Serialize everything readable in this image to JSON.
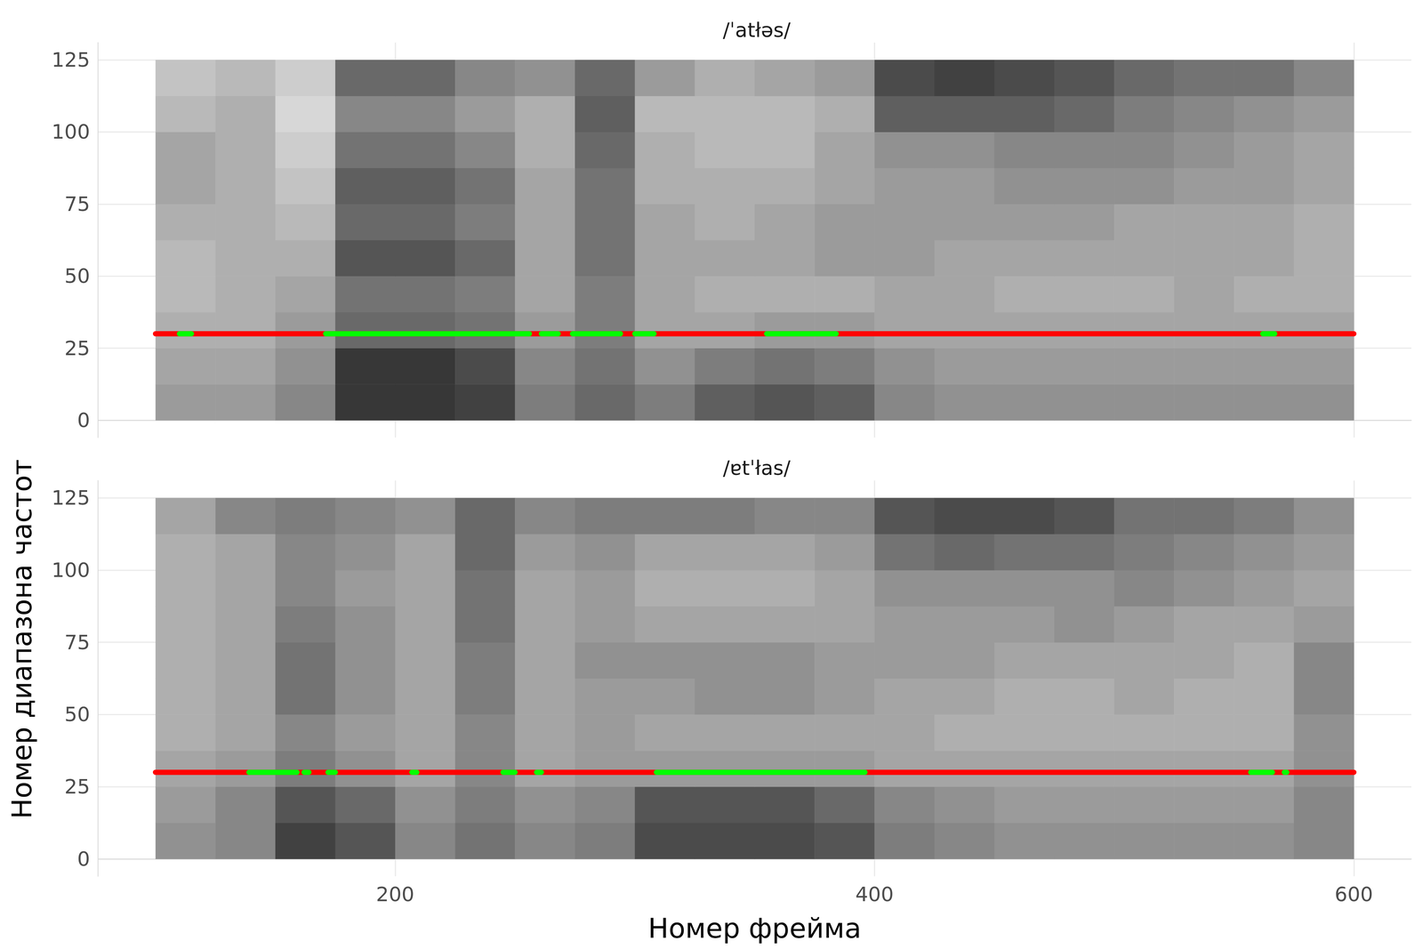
{
  "chart_data": [
    {
      "type": "heatmap",
      "title": "/ˈatłəs/",
      "y_label": "Номер диапазона частот",
      "xlim": [
        76,
        624
      ],
      "xticks": [
        200,
        400,
        600
      ],
      "ylim": [
        -6,
        131
      ],
      "yticks": [
        0,
        25,
        50,
        75,
        100,
        125
      ],
      "grid": true,
      "tick_labels": "y",
      "x_edges": [
        100,
        125,
        150,
        175,
        200,
        225,
        250,
        275,
        300,
        325,
        350,
        375,
        400,
        425,
        450,
        475,
        500,
        525,
        550,
        575,
        600
      ],
      "y_edges": [
        0,
        12.5,
        25,
        37.5,
        50,
        62.5,
        75,
        87.5,
        100,
        112.5,
        125
      ],
      "cells": [
        [
          0.4,
          0.4,
          0.5,
          0.9,
          0.9,
          0.85,
          0.55,
          0.65,
          0.55,
          0.7,
          0.75,
          0.7,
          0.5,
          0.45,
          0.45,
          0.45,
          0.45,
          0.45,
          0.45,
          0.45
        ],
        [
          0.35,
          0.35,
          0.45,
          0.9,
          0.9,
          0.8,
          0.5,
          0.6,
          0.45,
          0.55,
          0.6,
          0.55,
          0.45,
          0.4,
          0.4,
          0.4,
          0.4,
          0.4,
          0.4,
          0.4
        ],
        [
          0.3,
          0.3,
          0.4,
          0.65,
          0.65,
          0.6,
          0.4,
          0.55,
          0.35,
          0.35,
          0.4,
          0.4,
          0.35,
          0.35,
          0.35,
          0.35,
          0.35,
          0.35,
          0.35,
          0.35
        ],
        [
          0.25,
          0.3,
          0.35,
          0.6,
          0.6,
          0.55,
          0.35,
          0.55,
          0.35,
          0.3,
          0.3,
          0.3,
          0.35,
          0.35,
          0.3,
          0.3,
          0.3,
          0.35,
          0.3,
          0.3
        ],
        [
          0.25,
          0.3,
          0.3,
          0.75,
          0.75,
          0.65,
          0.35,
          0.6,
          0.35,
          0.35,
          0.35,
          0.4,
          0.4,
          0.35,
          0.35,
          0.35,
          0.35,
          0.35,
          0.35,
          0.3
        ],
        [
          0.3,
          0.3,
          0.25,
          0.65,
          0.65,
          0.55,
          0.35,
          0.6,
          0.35,
          0.3,
          0.35,
          0.4,
          0.4,
          0.4,
          0.4,
          0.4,
          0.35,
          0.35,
          0.35,
          0.3
        ],
        [
          0.35,
          0.3,
          0.2,
          0.7,
          0.7,
          0.6,
          0.35,
          0.6,
          0.3,
          0.3,
          0.3,
          0.35,
          0.4,
          0.4,
          0.45,
          0.45,
          0.45,
          0.4,
          0.4,
          0.35
        ],
        [
          0.35,
          0.3,
          0.15,
          0.6,
          0.6,
          0.5,
          0.3,
          0.65,
          0.3,
          0.25,
          0.25,
          0.35,
          0.45,
          0.45,
          0.5,
          0.5,
          0.5,
          0.45,
          0.4,
          0.35
        ],
        [
          0.25,
          0.3,
          0.1,
          0.5,
          0.5,
          0.4,
          0.3,
          0.7,
          0.25,
          0.25,
          0.25,
          0.3,
          0.7,
          0.7,
          0.7,
          0.65,
          0.55,
          0.5,
          0.45,
          0.4
        ],
        [
          0.2,
          0.25,
          0.15,
          0.65,
          0.65,
          0.5,
          0.45,
          0.65,
          0.4,
          0.3,
          0.35,
          0.4,
          0.8,
          0.85,
          0.8,
          0.75,
          0.65,
          0.6,
          0.6,
          0.5
        ]
      ],
      "line": {
        "y": 30,
        "x_range": [
          100,
          600
        ],
        "color": "#ff0000"
      },
      "highlights": {
        "color": "#00ff00",
        "ranges": [
          [
            110,
            115
          ],
          [
            171,
            256
          ],
          [
            261,
            268
          ],
          [
            274,
            294
          ],
          [
            300,
            308
          ],
          [
            355,
            384
          ],
          [
            562,
            567
          ]
        ]
      }
    },
    {
      "type": "heatmap",
      "title": "/ɐtˈłas/",
      "x_label": "Номер фрейма",
      "xlim": [
        76,
        624
      ],
      "xticks": [
        200,
        400,
        600
      ],
      "ylim": [
        -6,
        131
      ],
      "yticks": [
        0,
        25,
        50,
        75,
        100,
        125
      ],
      "grid": true,
      "x_edges": [
        100,
        125,
        150,
        175,
        200,
        225,
        250,
        275,
        300,
        325,
        350,
        375,
        400,
        425,
        450,
        475,
        500,
        525,
        550,
        575,
        600
      ],
      "y_edges": [
        0,
        12.5,
        25,
        37.5,
        50,
        62.5,
        75,
        87.5,
        100,
        112.5,
        125
      ],
      "cells": [
        [
          0.45,
          0.5,
          0.85,
          0.75,
          0.5,
          0.6,
          0.5,
          0.55,
          0.8,
          0.8,
          0.8,
          0.75,
          0.55,
          0.5,
          0.45,
          0.45,
          0.45,
          0.45,
          0.45,
          0.5
        ],
        [
          0.4,
          0.5,
          0.75,
          0.65,
          0.45,
          0.55,
          0.45,
          0.5,
          0.75,
          0.75,
          0.75,
          0.65,
          0.5,
          0.45,
          0.4,
          0.4,
          0.4,
          0.4,
          0.4,
          0.5
        ],
        [
          0.35,
          0.4,
          0.55,
          0.45,
          0.35,
          0.5,
          0.35,
          0.4,
          0.4,
          0.4,
          0.4,
          0.4,
          0.35,
          0.35,
          0.35,
          0.35,
          0.35,
          0.35,
          0.35,
          0.45
        ],
        [
          0.3,
          0.35,
          0.5,
          0.4,
          0.35,
          0.5,
          0.35,
          0.4,
          0.35,
          0.35,
          0.35,
          0.35,
          0.35,
          0.3,
          0.3,
          0.3,
          0.3,
          0.3,
          0.3,
          0.45
        ],
        [
          0.3,
          0.35,
          0.6,
          0.45,
          0.35,
          0.55,
          0.35,
          0.4,
          0.4,
          0.45,
          0.45,
          0.4,
          0.35,
          0.35,
          0.3,
          0.3,
          0.35,
          0.3,
          0.3,
          0.5
        ],
        [
          0.3,
          0.35,
          0.6,
          0.45,
          0.35,
          0.55,
          0.35,
          0.45,
          0.45,
          0.45,
          0.45,
          0.4,
          0.4,
          0.4,
          0.35,
          0.35,
          0.35,
          0.35,
          0.3,
          0.5
        ],
        [
          0.3,
          0.35,
          0.55,
          0.45,
          0.35,
          0.6,
          0.35,
          0.4,
          0.35,
          0.35,
          0.35,
          0.35,
          0.4,
          0.4,
          0.4,
          0.45,
          0.4,
          0.35,
          0.35,
          0.4
        ],
        [
          0.3,
          0.35,
          0.5,
          0.4,
          0.35,
          0.6,
          0.35,
          0.4,
          0.3,
          0.3,
          0.3,
          0.35,
          0.45,
          0.45,
          0.45,
          0.45,
          0.5,
          0.45,
          0.4,
          0.35
        ],
        [
          0.3,
          0.35,
          0.5,
          0.45,
          0.35,
          0.65,
          0.4,
          0.45,
          0.35,
          0.35,
          0.35,
          0.4,
          0.6,
          0.65,
          0.6,
          0.6,
          0.55,
          0.5,
          0.45,
          0.4
        ],
        [
          0.35,
          0.5,
          0.55,
          0.5,
          0.45,
          0.65,
          0.5,
          0.55,
          0.55,
          0.55,
          0.5,
          0.5,
          0.75,
          0.8,
          0.8,
          0.75,
          0.6,
          0.6,
          0.55,
          0.45
        ]
      ],
      "line": {
        "y": 30,
        "x_range": [
          100,
          600
        ],
        "color": "#ff0000"
      },
      "highlights": {
        "color": "#00ff00",
        "ranges": [
          [
            139,
            159
          ],
          [
            162,
            164
          ],
          [
            172,
            175
          ],
          [
            207,
            209
          ],
          [
            245,
            250
          ],
          [
            259,
            261
          ],
          [
            309,
            396
          ],
          [
            557,
            566
          ],
          [
            571,
            572
          ]
        ]
      }
    }
  ]
}
